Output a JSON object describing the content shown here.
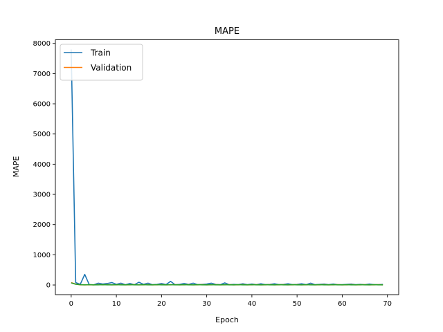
{
  "chart_data": {
    "type": "line",
    "title": "MAPE",
    "xlabel": "Epoch",
    "ylabel": "MAPE",
    "xlim": [
      -3.5,
      72.5
    ],
    "ylim": [
      -320,
      8120
    ],
    "xticks": [
      0,
      10,
      20,
      30,
      40,
      50,
      60,
      70
    ],
    "yticks": [
      0,
      1000,
      2000,
      3000,
      4000,
      5000,
      6000,
      7000,
      8000
    ],
    "grid": false,
    "legend_position": "upper-left",
    "series": [
      {
        "name": "Train",
        "color": "#1f77b4",
        "x": [
          0,
          1,
          2,
          3,
          4,
          5,
          6,
          7,
          8,
          9,
          10,
          11,
          12,
          13,
          14,
          15,
          16,
          17,
          18,
          19,
          20,
          21,
          22,
          23,
          24,
          25,
          26,
          27,
          28,
          29,
          30,
          31,
          32,
          33,
          34,
          35,
          36,
          37,
          38,
          39,
          40,
          41,
          42,
          43,
          44,
          45,
          46,
          47,
          48,
          49,
          50,
          51,
          52,
          53,
          54,
          55,
          56,
          57,
          58,
          59,
          60,
          61,
          62,
          63,
          64,
          65,
          66,
          67,
          68,
          69
        ],
        "y": [
          7800,
          80,
          20,
          350,
          10,
          5,
          60,
          30,
          50,
          80,
          20,
          60,
          10,
          50,
          10,
          90,
          20,
          60,
          10,
          20,
          50,
          15,
          120,
          10,
          20,
          50,
          20,
          60,
          10,
          20,
          30,
          60,
          20,
          10,
          70,
          10,
          20,
          10,
          40,
          10,
          30,
          10,
          40,
          10,
          20,
          40,
          10,
          20,
          40,
          10,
          20,
          40,
          10,
          60,
          10,
          20,
          30,
          10,
          30,
          10,
          10,
          20,
          30,
          10,
          20,
          10,
          30,
          10,
          10,
          20
        ]
      },
      {
        "name": "Validation",
        "color": "#ff7f0e",
        "x": [
          0,
          1,
          2,
          3,
          4,
          5,
          6,
          7,
          8,
          9,
          10,
          11,
          12,
          13,
          14,
          15,
          16,
          17,
          18,
          19,
          20,
          21,
          22,
          23,
          24,
          25,
          26,
          27,
          28,
          29,
          30,
          31,
          32,
          33,
          34,
          35,
          36,
          37,
          38,
          39,
          40,
          41,
          42,
          43,
          44,
          45,
          46,
          47,
          48,
          49,
          50,
          51,
          52,
          53,
          54,
          55,
          56,
          57,
          58,
          59,
          60,
          61,
          62,
          63,
          64,
          65,
          66,
          67,
          68,
          69
        ],
        "y": [
          80,
          30,
          5,
          5,
          5,
          5,
          10,
          5,
          10,
          5,
          5,
          10,
          5,
          5,
          10,
          5,
          5,
          10,
          5,
          5,
          10,
          5,
          5,
          10,
          5,
          5,
          10,
          5,
          5,
          10,
          5,
          5,
          10,
          5,
          5,
          10,
          5,
          5,
          10,
          5,
          5,
          10,
          5,
          5,
          10,
          5,
          5,
          10,
          5,
          5,
          10,
          5,
          5,
          10,
          5,
          5,
          10,
          5,
          5,
          10,
          5,
          5,
          10,
          5,
          5,
          10,
          5,
          5,
          10,
          5
        ]
      },
      {
        "name": "",
        "color": "#2ca02c",
        "x": [
          0,
          1,
          2,
          3,
          4,
          5,
          6,
          7,
          8,
          9,
          10,
          11,
          12,
          13,
          14,
          15,
          16,
          17,
          18,
          19,
          20,
          21,
          22,
          23,
          24,
          25,
          26,
          27,
          28,
          29,
          30,
          31,
          32,
          33,
          34,
          35,
          36,
          37,
          38,
          39,
          40,
          41,
          42,
          43,
          44,
          45,
          46,
          47,
          48,
          49,
          50,
          51,
          52,
          53,
          54,
          55,
          56,
          57,
          58,
          59,
          60,
          61,
          62,
          63,
          64,
          65,
          66,
          67,
          68,
          69
        ],
        "y": [
          70,
          25,
          10,
          5,
          10,
          5,
          5,
          10,
          5,
          5,
          10,
          5,
          5,
          10,
          5,
          5,
          10,
          5,
          5,
          10,
          5,
          5,
          10,
          5,
          5,
          10,
          5,
          5,
          10,
          5,
          5,
          10,
          5,
          5,
          10,
          5,
          5,
          10,
          5,
          5,
          10,
          5,
          5,
          10,
          5,
          5,
          10,
          5,
          5,
          10,
          5,
          5,
          10,
          5,
          5,
          10,
          5,
          5,
          10,
          5,
          5,
          10,
          5,
          5,
          10,
          5,
          5,
          10,
          5,
          5
        ]
      }
    ]
  }
}
